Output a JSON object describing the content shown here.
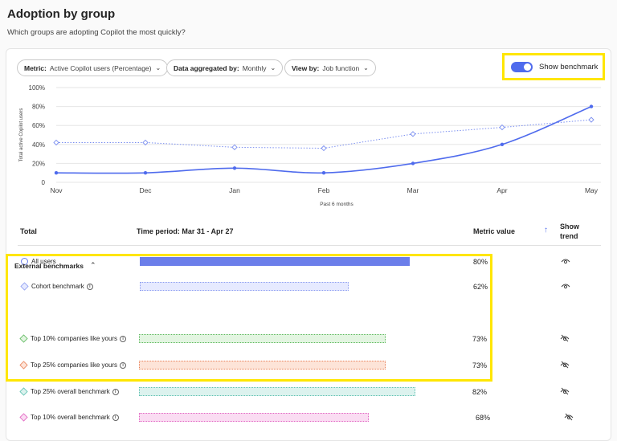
{
  "header": {
    "title": "Adoption by group",
    "subtitle": "Which groups are adopting Copilot the most quickly?"
  },
  "filters": [
    {
      "label": "Metric:",
      "value": "Active Copilot users (Percentage)"
    },
    {
      "label": "Data aggregated by:",
      "value": "Monthly"
    },
    {
      "label": "View by:",
      "value": "Job function"
    }
  ],
  "benchmark_toggle": {
    "label": "Show benchmark",
    "on": true
  },
  "chart_data": {
    "type": "line",
    "x": [
      "Nov",
      "Dec",
      "Jan",
      "Feb",
      "Mar",
      "Apr",
      "May"
    ],
    "xlabel": "Past 6 months",
    "ylabel": "Total active Copilot users",
    "ylim": [
      0,
      100
    ],
    "yticks": [
      "0",
      "20%",
      "40%",
      "60%",
      "80%",
      "100%"
    ],
    "grid": true,
    "series": [
      {
        "values": [
          10,
          10,
          15,
          10,
          20,
          40,
          80
        ],
        "color": "#4f6bed",
        "style": "solid",
        "marker": "circle"
      },
      {
        "values": [
          42,
          42,
          37,
          36,
          51,
          58,
          66
        ],
        "color": "#7b8ff0",
        "style": "dotted",
        "marker": "diamond"
      }
    ]
  },
  "table": {
    "col_total": "Total",
    "col_period": "Time period: Mar 31 - Apr 27",
    "col_metric": "Metric value",
    "col_trend_1": "Show",
    "col_trend_2": "trend",
    "rows": [
      {
        "label": "All users",
        "value": "80%",
        "pct": 80,
        "color": "#6b7eea",
        "fill": "#6b7eea",
        "marker": "circle",
        "info": false,
        "trend_visible": true
      },
      {
        "label": "Cohort benchmark",
        "value": "62%",
        "pct": 62,
        "color": "#8c9cf0",
        "fill": "#e6eaff",
        "marker": "diamond",
        "info": true,
        "trend_visible": true
      }
    ],
    "external_title": "External benchmarks",
    "external_rows": [
      {
        "label": "Top 10% companies like yours",
        "value": "73%",
        "pct": 73,
        "color": "#5cb85c",
        "fill": "#e3f5e1",
        "marker": "diamond",
        "info": true
      },
      {
        "label": "Top 25% companies like yours",
        "value": "73%",
        "pct": 73,
        "color": "#e8825a",
        "fill": "#fde4d8",
        "marker": "diamond",
        "info": true
      },
      {
        "label": "Top 25% overall benchmark",
        "value": "82%",
        "pct": 82,
        "color": "#5cc0b0",
        "fill": "#dcf2ee",
        "marker": "diamond",
        "info": true
      },
      {
        "label": "Top 10% overall benchmark",
        "value": "68%",
        "pct": 68,
        "color": "#e060c0",
        "fill": "#fadcf2",
        "marker": "diamond",
        "info": true
      }
    ]
  }
}
